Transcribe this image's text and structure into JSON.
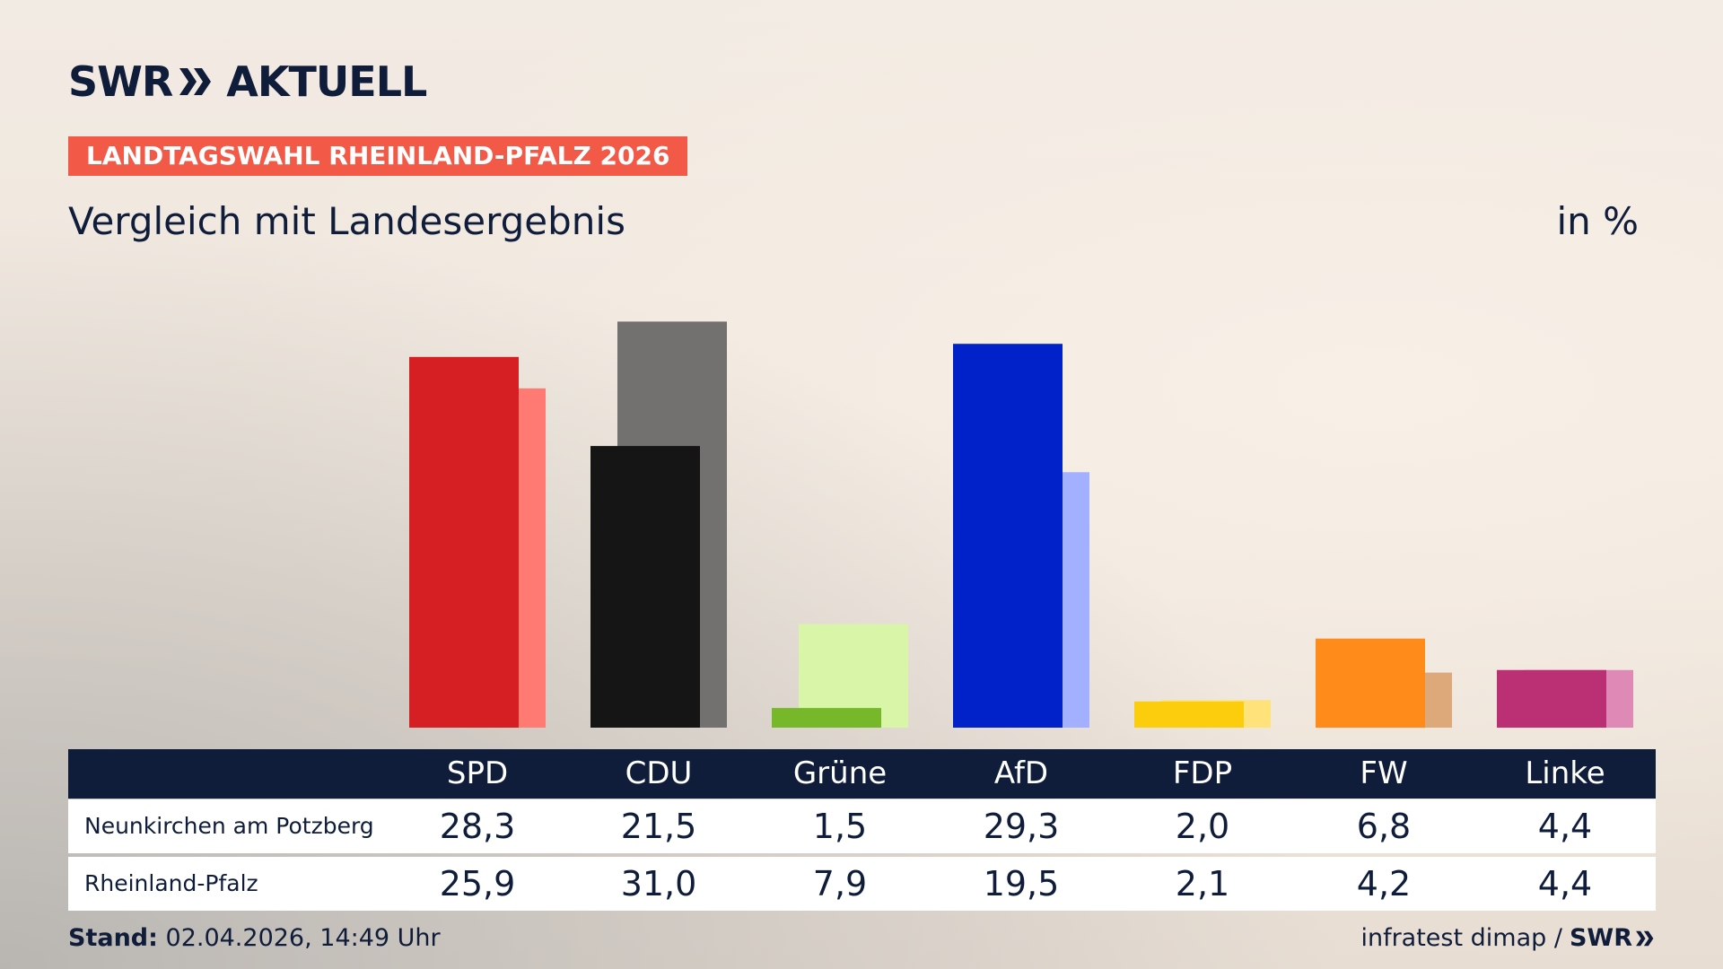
{
  "header": {
    "brand_left": "SWR",
    "brand_right": "AKTUELL",
    "kicker": "LANDTAGSWAHL RHEINLAND-PFALZ 2026",
    "title": "Vergleich mit Landesergebnis",
    "unit": "in %"
  },
  "chart_data": {
    "type": "bar",
    "categories": [
      "SPD",
      "CDU",
      "Grüne",
      "AfD",
      "FDP",
      "FW",
      "Linke"
    ],
    "series": [
      {
        "name": "Neunkirchen am Potzberg",
        "values": [
          28.3,
          21.5,
          1.5,
          29.3,
          2.0,
          6.8,
          4.4
        ],
        "colors": [
          "#d61f22",
          "#151515",
          "#76b82a",
          "#0022c8",
          "#fbcd0c",
          "#ff8c1a",
          "#bb3074"
        ]
      },
      {
        "name": "Rheinland-Pfalz",
        "values": [
          25.9,
          31.0,
          7.9,
          19.5,
          2.1,
          4.2,
          4.4
        ],
        "colors": [
          "#ff7a73",
          "#737170",
          "#d8f5a8",
          "#a2b0ff",
          "#ffe27a",
          "#dda87a",
          "#df8ab6"
        ]
      }
    ],
    "ylim": [
      0,
      32
    ]
  },
  "table": {
    "headers": [
      "SPD",
      "CDU",
      "Grüne",
      "AfD",
      "FDP",
      "FW",
      "Linke"
    ],
    "rows": [
      {
        "label": "Neunkirchen am Potzberg",
        "values": [
          "28,3",
          "21,5",
          "1,5",
          "29,3",
          "2,0",
          "6,8",
          "4,4"
        ]
      },
      {
        "label": "Rheinland-Pfalz",
        "values": [
          "25,9",
          "31,0",
          "7,9",
          "19,5",
          "2,1",
          "4,2",
          "4,4"
        ]
      }
    ]
  },
  "footer": {
    "stand_label": "Stand:",
    "stand_value": "02.04.2026, 14:49 Uhr",
    "source": "infratest dimap /",
    "source_brand": "SWR"
  }
}
